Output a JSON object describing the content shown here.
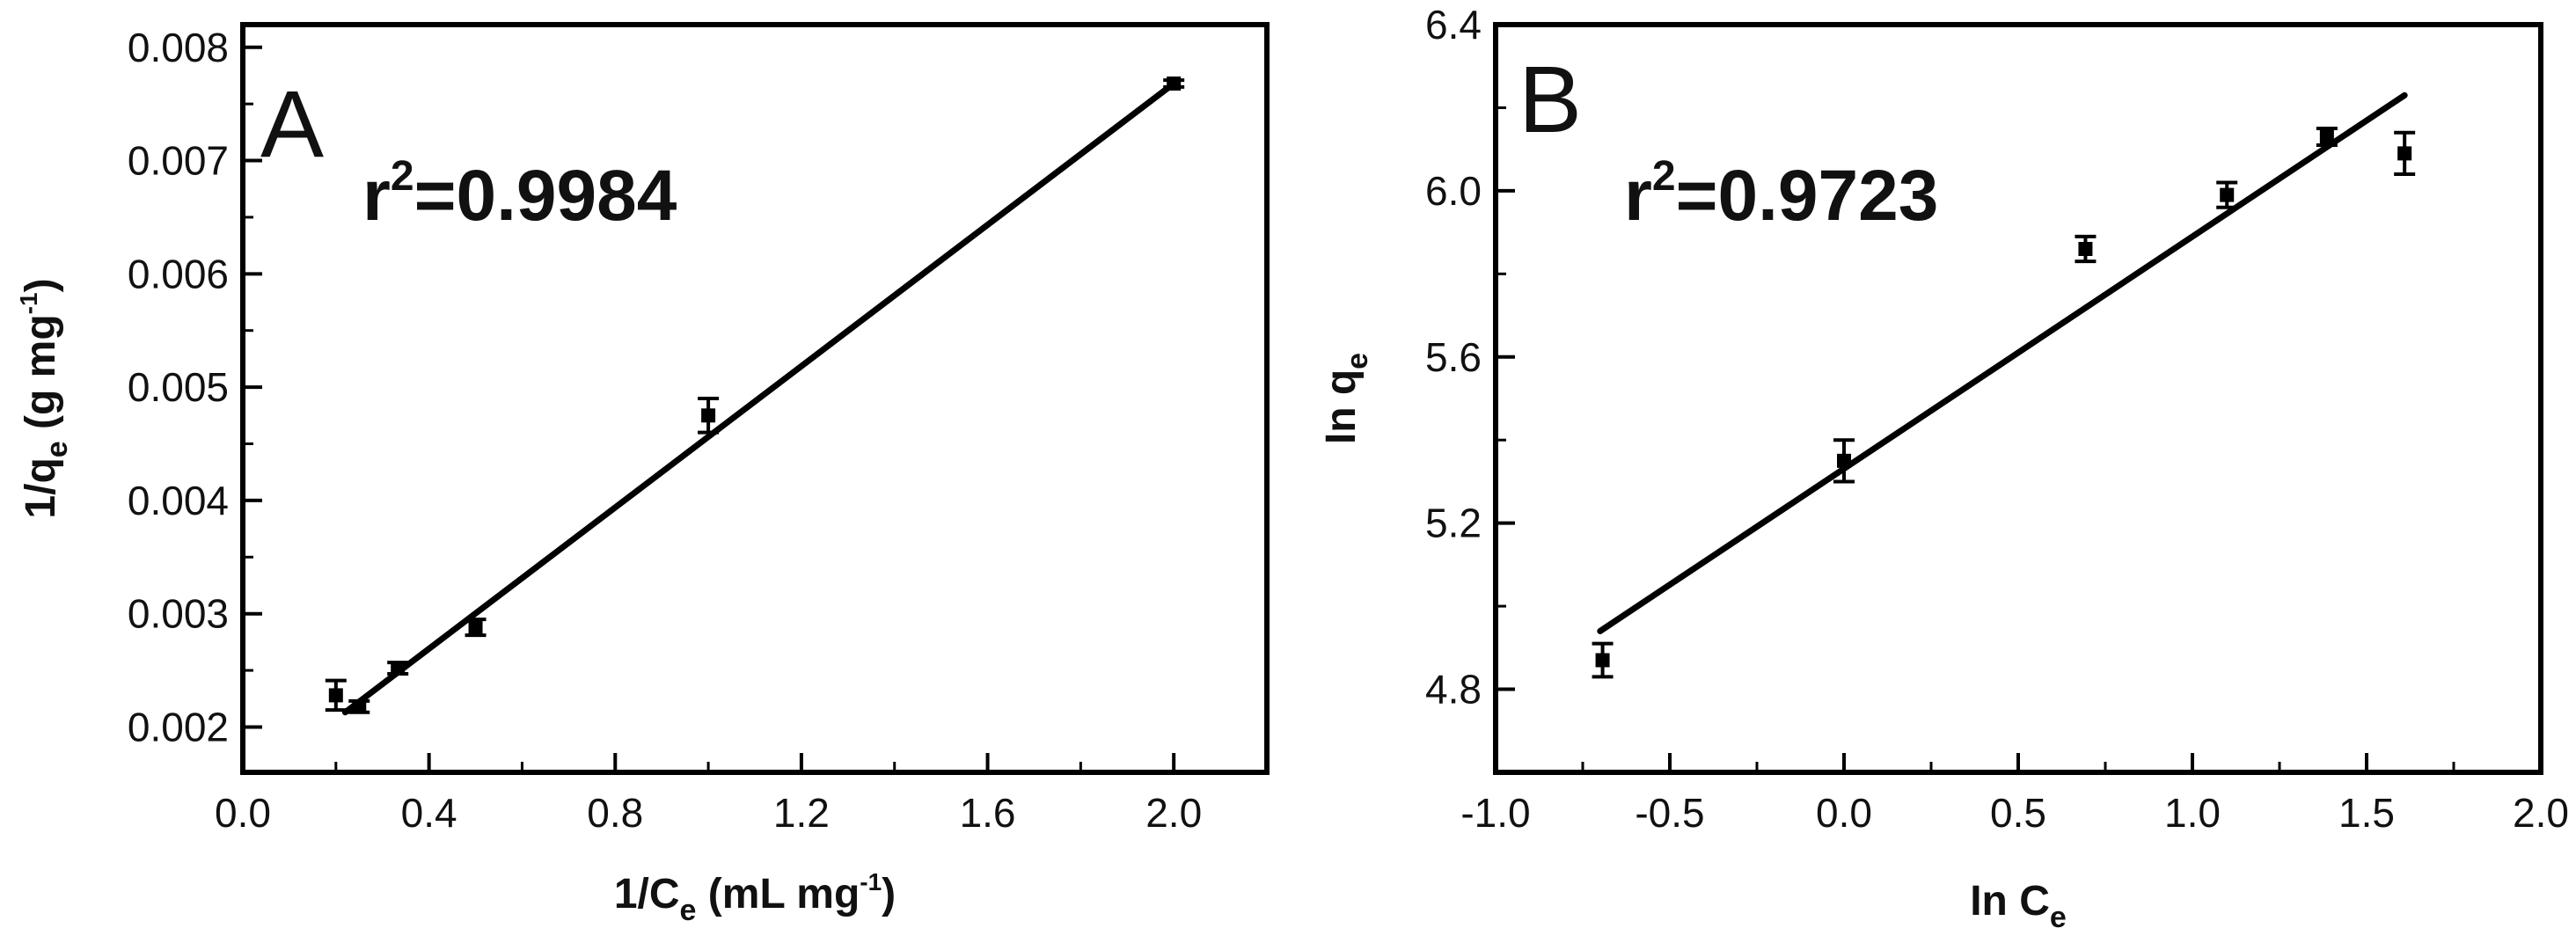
{
  "chart_data": [
    {
      "type": "scatter",
      "panel_label": "A",
      "annotation": {
        "prefix": "r",
        "sup": "2",
        "value": "=0.9984"
      },
      "xlabel": {
        "main": "1/C",
        "sub": "e",
        "rest": " (mL mg",
        "sup": "-1",
        "end": ")"
      },
      "ylabel": {
        "main": "1/q",
        "sub": "e",
        "rest": " (g mg",
        "sup": "-1",
        "end": ")"
      },
      "xlim": [
        0.0,
        2.2
      ],
      "ylim": [
        0.0016,
        0.0082
      ],
      "xticks": [
        0.0,
        0.4,
        0.8,
        1.2,
        1.6,
        2.0
      ],
      "xtick_labels": [
        "0.0",
        "0.4",
        "0.8",
        "1.2",
        "1.6",
        "2.0"
      ],
      "yticks": [
        0.002,
        0.003,
        0.004,
        0.005,
        0.006,
        0.007,
        0.008
      ],
      "ytick_labels": [
        "0.002",
        "0.003",
        "0.004",
        "0.005",
        "0.006",
        "0.007",
        "0.008"
      ],
      "series": [
        {
          "points": [
            {
              "x": 0.2,
              "y": 0.00228,
              "err": 0.00013
            },
            {
              "x": 0.25,
              "y": 0.00218,
              "err": 5e-05
            },
            {
              "x": 0.333,
              "y": 0.00252,
              "err": 5e-05
            },
            {
              "x": 0.5,
              "y": 0.00288,
              "err": 7e-05
            },
            {
              "x": 1.0,
              "y": 0.00475,
              "err": 0.00015
            },
            {
              "x": 2.0,
              "y": 0.00768,
              "err": 3e-05
            }
          ],
          "fit": {
            "x": [
              0.22,
              2.0
            ],
            "y": [
              0.00213,
              0.00768
            ]
          }
        }
      ],
      "grid": false
    },
    {
      "type": "scatter",
      "panel_label": "B",
      "annotation": {
        "prefix": "r",
        "sup": "2",
        "value": "=0.9723"
      },
      "xlabel": {
        "main": "In C",
        "sub": "e",
        "rest": "",
        "sup": "",
        "end": ""
      },
      "ylabel": {
        "main": "In q",
        "sub": "e",
        "rest": "",
        "sup": "",
        "end": ""
      },
      "xlim": [
        -1.0,
        2.0
      ],
      "ylim": [
        4.6,
        6.4
      ],
      "xticks": [
        -1.0,
        -0.5,
        0.0,
        0.5,
        1.0,
        1.5,
        2.0
      ],
      "xtick_labels": [
        "-1.0",
        "-0.5",
        "0.0",
        "0.5",
        "1.0",
        "1.5",
        "2.0"
      ],
      "yticks": [
        4.8,
        5.2,
        5.6,
        6.0,
        6.4
      ],
      "ytick_labels": [
        "4.8",
        "5.2",
        "5.6",
        "6.0",
        "6.4"
      ],
      "series": [
        {
          "points": [
            {
              "x": -0.693,
              "y": 4.87,
              "err": 0.04
            },
            {
              "x": 0.0,
              "y": 5.35,
              "err": 0.05
            },
            {
              "x": 0.693,
              "y": 5.86,
              "err": 0.03
            },
            {
              "x": 1.099,
              "y": 5.99,
              "err": 0.03
            },
            {
              "x": 1.386,
              "y": 6.13,
              "err": 0.02
            },
            {
              "x": 1.609,
              "y": 6.09,
              "err": 0.05
            }
          ],
          "fit": {
            "x": [
              -0.7,
              1.609
            ],
            "y": [
              4.94,
              6.23
            ]
          }
        }
      ],
      "grid": false
    }
  ]
}
